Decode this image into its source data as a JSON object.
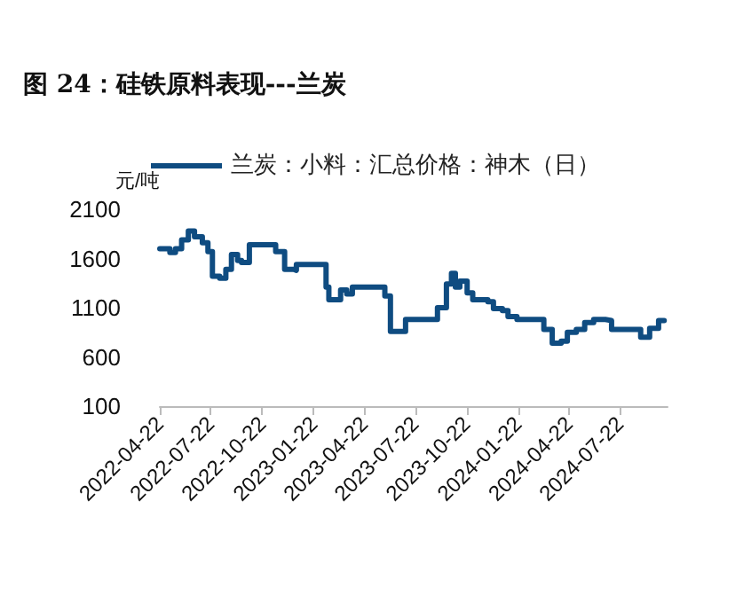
{
  "chart_data": {
    "type": "step",
    "title": "图 24：硅铁原料表现---兰炭",
    "ylabel": "元/吨",
    "series": [
      {
        "name": "兰炭：小料：汇总价格：神木（日）",
        "color": "#0f4c81",
        "x": [
          "2022-04-22",
          "2022-05-10",
          "2022-05-20",
          "2022-05-31",
          "2022-06-12",
          "2022-06-23",
          "2022-07-07",
          "2022-07-17",
          "2022-07-25",
          "2022-08-07",
          "2022-08-18",
          "2022-08-28",
          "2022-09-08",
          "2022-09-15",
          "2022-09-29",
          "2022-11-05",
          "2022-11-15",
          "2022-12-01",
          "2022-12-17",
          "2022-12-22",
          "2023-02-02",
          "2023-02-13",
          "2023-02-18",
          "2023-03-03",
          "2023-03-11",
          "2023-03-22",
          "2023-04-01",
          "2023-05-18",
          "2023-05-29",
          "2023-06-08",
          "2023-06-29",
          "2023-07-05",
          "2023-08-10",
          "2023-08-31",
          "2023-09-16",
          "2023-09-25",
          "2023-10-02",
          "2023-10-10",
          "2023-10-23",
          "2023-11-02",
          "2023-11-29",
          "2023-12-09",
          "2023-12-25",
          "2024-01-04",
          "2024-01-20",
          "2024-02-21",
          "2024-03-08",
          "2024-03-23",
          "2024-04-08",
          "2024-04-19",
          "2024-05-05",
          "2024-05-20",
          "2024-06-05",
          "2024-06-26",
          "2024-07-07",
          "2024-08-18",
          "2024-08-28",
          "2024-09-13",
          "2024-09-29",
          "2024-10-09"
        ],
        "values": [
          1700,
          1660,
          1700,
          1790,
          1880,
          1820,
          1760,
          1670,
          1420,
          1400,
          1490,
          1640,
          1580,
          1560,
          1740,
          1740,
          1670,
          1490,
          1480,
          1540,
          1540,
          1310,
          1180,
          1180,
          1280,
          1240,
          1310,
          1310,
          1220,
          860,
          860,
          980,
          980,
          1100,
          1340,
          1450,
          1310,
          1370,
          1250,
          1180,
          1160,
          1090,
          1070,
          1010,
          980,
          980,
          880,
          740,
          760,
          850,
          880,
          950,
          980,
          970,
          880,
          880,
          800,
          890,
          970,
          970
        ]
      }
    ],
    "xlim": [
      "2022-04-22",
      "2024-10-15"
    ],
    "xticks": [
      "2022-04-22",
      "2022-07-22",
      "2022-10-22",
      "2023-01-22",
      "2023-04-22",
      "2023-07-22",
      "2023-10-22",
      "2024-01-22",
      "2024-04-22",
      "2024-07-22"
    ],
    "ylim": [
      100,
      2100
    ],
    "yticks": [
      100,
      600,
      1100,
      1600,
      2100
    ],
    "grid": false,
    "legend": "top",
    "marker": "none",
    "line_style": "solid"
  }
}
